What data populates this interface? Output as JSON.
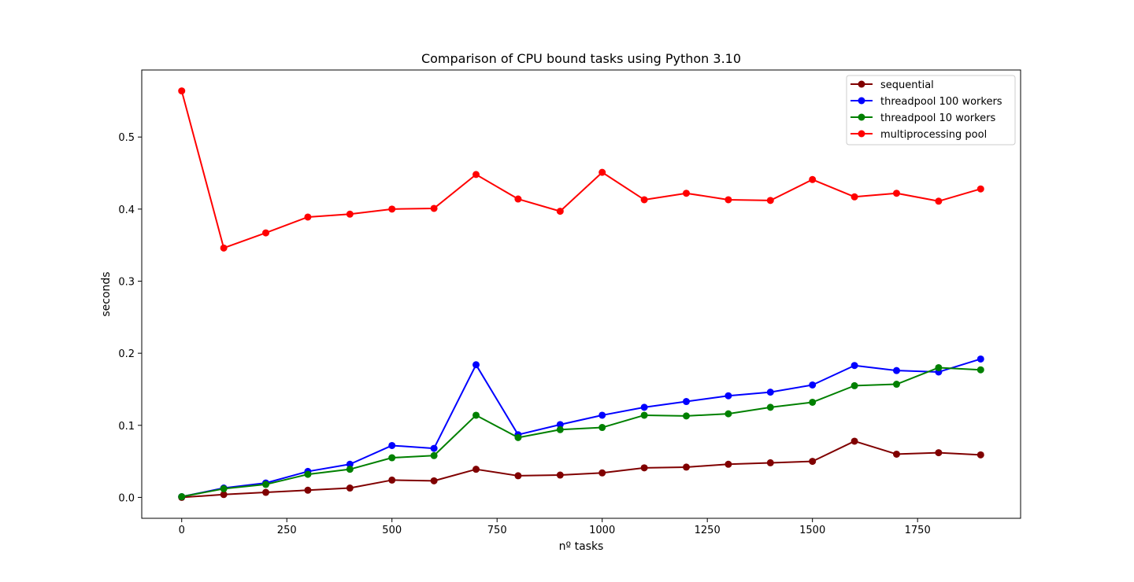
{
  "chart_data": {
    "type": "line",
    "title": "Comparison of CPU bound tasks using Python 3.10",
    "xlabel": "nº tasks",
    "ylabel": "seconds",
    "xlim": [
      -95,
      1995
    ],
    "ylim": [
      -0.029,
      0.593
    ],
    "xticks": [
      0,
      250,
      500,
      750,
      1000,
      1250,
      1500,
      1750
    ],
    "xtick_labels": [
      "0",
      "250",
      "500",
      "750",
      "1000",
      "1250",
      "1500",
      "1750"
    ],
    "yticks": [
      0.0,
      0.1,
      0.2,
      0.3,
      0.4,
      0.5
    ],
    "ytick_labels": [
      "0.0",
      "0.1",
      "0.2",
      "0.3",
      "0.4",
      "0.5"
    ],
    "grid": false,
    "legend_position": "top-right",
    "x": [
      0,
      100,
      200,
      300,
      400,
      500,
      600,
      700,
      800,
      900,
      1000,
      1100,
      1200,
      1300,
      1400,
      1500,
      1600,
      1700,
      1800,
      1900
    ],
    "series": [
      {
        "name": "sequential",
        "color": "#800000",
        "values": [
          0.0,
          0.004,
          0.007,
          0.01,
          0.013,
          0.024,
          0.023,
          0.039,
          0.03,
          0.031,
          0.034,
          0.041,
          0.042,
          0.046,
          0.048,
          0.05,
          0.078,
          0.06,
          0.062,
          0.059
        ]
      },
      {
        "name": "threadpool 100 workers",
        "color": "#0000ff",
        "values": [
          0.001,
          0.013,
          0.02,
          0.036,
          0.046,
          0.072,
          0.068,
          0.184,
          0.087,
          0.101,
          0.114,
          0.125,
          0.133,
          0.141,
          0.146,
          0.156,
          0.183,
          0.176,
          0.174,
          0.192
        ]
      },
      {
        "name": "threadpool 10 workers",
        "color": "#008000",
        "values": [
          0.001,
          0.012,
          0.018,
          0.032,
          0.039,
          0.055,
          0.058,
          0.114,
          0.083,
          0.094,
          0.097,
          0.114,
          0.113,
          0.116,
          0.125,
          0.132,
          0.155,
          0.157,
          0.18,
          0.177
        ]
      },
      {
        "name": "multiprocessing pool",
        "color": "#ff0000",
        "values": [
          0.564,
          0.346,
          0.367,
          0.389,
          0.393,
          0.4,
          0.401,
          0.448,
          0.414,
          0.397,
          0.451,
          0.413,
          0.422,
          0.413,
          0.412,
          0.441,
          0.417,
          0.422,
          0.411,
          0.428
        ]
      }
    ]
  }
}
